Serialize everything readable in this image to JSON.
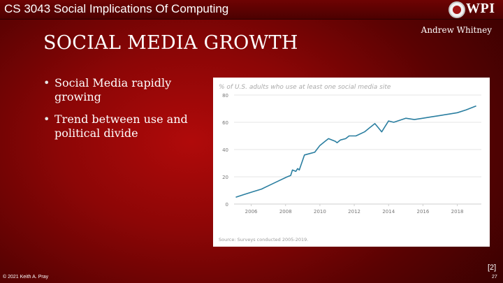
{
  "header": {
    "course_title": "CS 3043 Social Implications Of Computing",
    "logo_text": "WPI"
  },
  "slide": {
    "author": "Andrew Whitney",
    "title": "SOCIAL MEDIA GROWTH",
    "bullets": [
      "Social Media rapidly growing",
      "Trend between use and political divide"
    ],
    "reference": "[2]"
  },
  "footer": {
    "copyright": "© 2021 Keith A. Pray",
    "page_number": "27"
  },
  "colors": {
    "line": "#2a7ea0",
    "grid": "#e6e6e6",
    "tick_text": "#777777",
    "title_text": "#a9a9a9"
  },
  "chart_data": {
    "type": "line",
    "title": "% of U.S. adults who use at least one social media site",
    "source": "Source: Surveys conducted 2005-2019.",
    "xlabel": "",
    "ylabel": "",
    "xlim": [
      2005,
      2019.4
    ],
    "ylim": [
      0,
      80
    ],
    "x_ticks": [
      2006,
      2008,
      2010,
      2012,
      2014,
      2016,
      2018
    ],
    "y_ticks": [
      0,
      20,
      40,
      60,
      80
    ],
    "grid": true,
    "series": [
      {
        "name": "Social media use",
        "x": [
          2005.1,
          2005.6,
          2006.1,
          2006.6,
          2007.1,
          2007.6,
          2008.1,
          2008.3,
          2008.4,
          2008.6,
          2008.7,
          2008.8,
          2009.1,
          2009.4,
          2009.7,
          2010.0,
          2010.3,
          2010.5,
          2010.9,
          2011.0,
          2011.2,
          2011.5,
          2011.7,
          2012.1,
          2012.6,
          2012.9,
          2013.2,
          2013.4,
          2013.6,
          2013.8,
          2014.0,
          2014.3,
          2015.0,
          2015.5,
          2016.0,
          2016.5,
          2017.0,
          2017.5,
          2018.0,
          2018.5,
          2019.1
        ],
        "values": [
          5,
          7,
          9,
          11,
          14,
          17,
          20,
          21,
          25,
          24,
          26,
          25,
          36,
          37,
          38,
          43,
          46,
          48,
          46,
          45,
          47,
          48,
          50,
          50,
          53,
          56,
          59,
          56,
          53,
          57,
          61,
          60,
          63,
          62,
          63,
          64,
          65,
          66,
          67,
          69,
          72
        ]
      }
    ]
  }
}
